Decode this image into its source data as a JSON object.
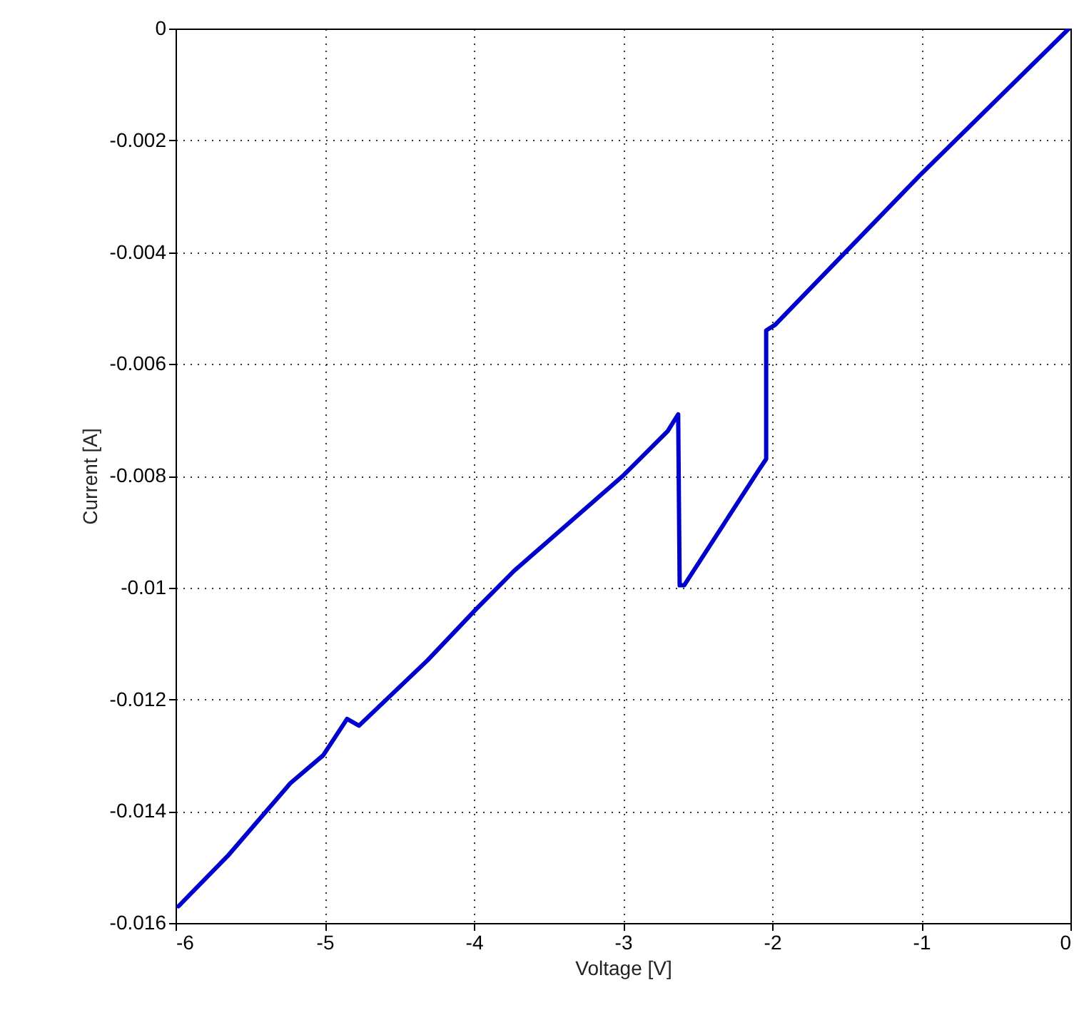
{
  "chart_data": {
    "type": "line",
    "xlabel": "Voltage [V]",
    "ylabel": "Current [A]",
    "series": [
      {
        "color": "#0000cc",
        "x": [
          -5.98,
          -5.65,
          -5.23,
          -5.01,
          -4.85,
          -4.77,
          -4.31,
          -3.99,
          -3.73,
          -3.0,
          -2.7,
          -2.63,
          -2.62,
          -2.59,
          -2.09,
          -2.04,
          -2.04,
          -1.98,
          -1.0,
          -0.01
        ],
        "values": [
          -0.0157,
          -0.0148,
          -0.0135,
          -0.013,
          -0.01235,
          -0.01247,
          -0.0113,
          -0.0104,
          -0.0097,
          -0.008,
          -0.0072,
          -0.0069,
          -0.00996,
          -0.00996,
          -0.0079,
          -0.0077,
          -0.0054,
          -0.0053,
          -0.0026,
          0.0
        ]
      }
    ],
    "xlim": [
      -6,
      0
    ],
    "xticks": [
      -6,
      -5,
      -4,
      -3,
      -2,
      -1,
      0
    ],
    "ylim": [
      -0.016,
      0
    ],
    "yticks": [
      -0.016,
      -0.014,
      -0.012,
      -0.01,
      -0.008,
      -0.006,
      -0.004,
      -0.002,
      0
    ],
    "grid": true,
    "line_style": "solid",
    "marker": "none"
  }
}
